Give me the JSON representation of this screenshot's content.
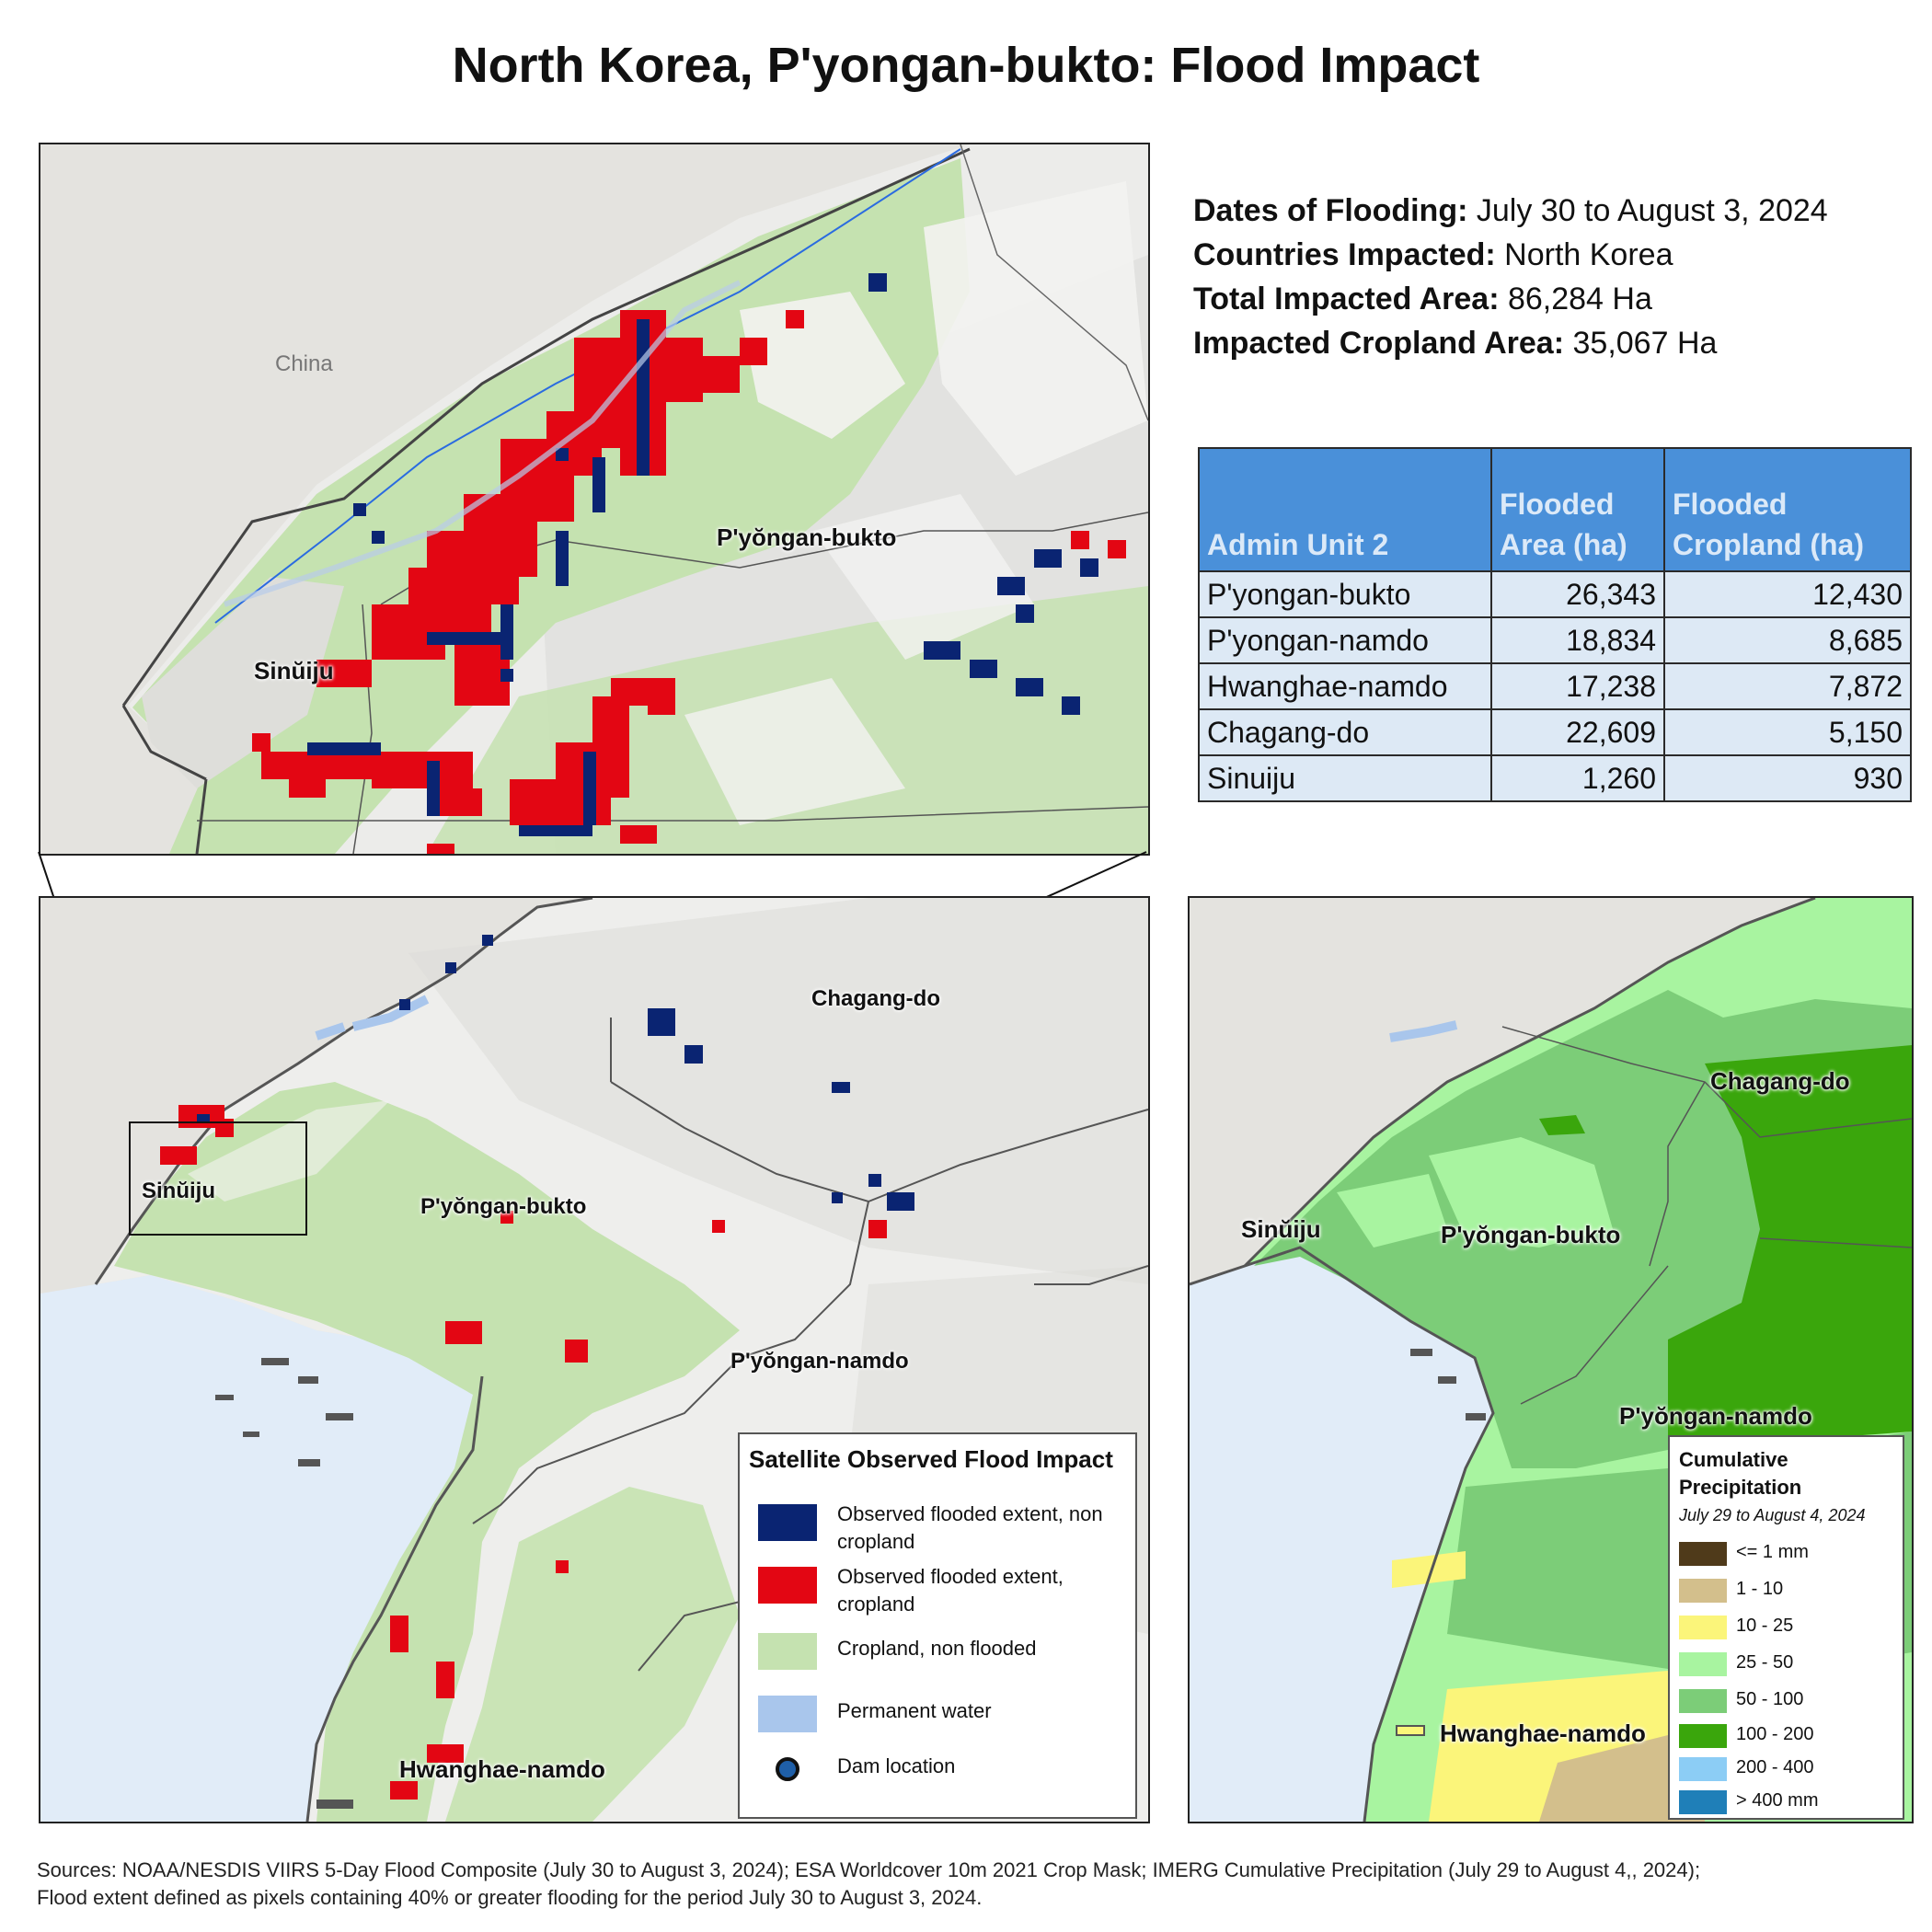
{
  "title": "North Korea, P'yongan-bukto: Flood Impact",
  "info": {
    "dates_label": "Dates of Flooding:",
    "dates_value": "July 30 to August 3, 2024",
    "countries_label": "Countries Impacted:",
    "countries_value": "North Korea",
    "total_label": "Total Impacted Area:",
    "total_value": "86,284 Ha",
    "cropland_label": "Impacted Cropland Area:",
    "cropland_value": "35,067 Ha"
  },
  "table": {
    "headers": [
      "Admin Unit 2",
      "Flooded Area (ha)",
      "Flooded Cropland (ha)"
    ],
    "rows": [
      [
        "P'yongan-bukto",
        "26,343",
        "12,430"
      ],
      [
        "P'yongan-namdo",
        "18,834",
        "8,685"
      ],
      [
        "Hwanghae-namdo",
        "17,238",
        "7,872"
      ],
      [
        "Chagang-do",
        "22,609",
        "5,150"
      ],
      [
        "Sinuiju",
        "1,260",
        "930"
      ]
    ]
  },
  "inset_labels": {
    "china": "China",
    "pyongan_bukto": "P'yŏngan-bukto",
    "sinuiju": "Sinŭiju"
  },
  "main_labels": {
    "chagang": "Chagang-do",
    "pyongan_bukto": "P'yŏngan-bukto",
    "sinuiju": "Sinŭiju",
    "pyongan_namdo": "P'yŏngan-namdo",
    "hwanghae": "Hwanghae-namdo"
  },
  "precip_labels": {
    "chagang": "Chagang-do",
    "sinuiju": "Sinŭiju",
    "pyongan_bukto": "P'yŏngan-bukto",
    "pyongan_namdo": "P'yŏngan-namdo",
    "hwanghae": "Hwanghae-namdo"
  },
  "flood_legend": {
    "title": "Satellite Observed Flood Impact",
    "items": [
      {
        "label": "Observed flooded extent, non cropland",
        "color": "#0a2472"
      },
      {
        "label": "Observed flooded extent, cropland",
        "color": "#e30613"
      },
      {
        "label": "Cropland, non flooded",
        "color": "#c5e2b0"
      },
      {
        "label": "Permanent water",
        "color": "#a9c6ec"
      },
      {
        "label": "Dam location",
        "color": "#1f5fa8"
      }
    ]
  },
  "precip_legend": {
    "title_1": "Cumulative",
    "title_2": "Precipitation",
    "subtitle": "July 29 to August 4, 2024",
    "items": [
      {
        "label": "<= 1 mm",
        "color": "#4f3a1a"
      },
      {
        "label": "1 - 10",
        "color": "#d3bf8c"
      },
      {
        "label": "10 - 25",
        "color": "#fbf57a"
      },
      {
        "label": "25 - 50",
        "color": "#a8f4a0"
      },
      {
        "label": "50 - 100",
        "color": "#7ccd78"
      },
      {
        "label": "100 - 200",
        "color": "#3aa60c"
      },
      {
        "label": "200 - 400",
        "color": "#8ccdf5"
      },
      {
        "label": "> 400 mm",
        "color": "#1f7fb8"
      }
    ]
  },
  "sources": {
    "line1": "Sources: NOAA/NESDIS VIIRS 5-Day Flood Composite (July 30 to August 3, 2024); ESA Worldcover 10m 2021 Crop Mask; IMERG Cumulative Precipitation (July 29 to August 4,, 2024);",
    "line2": "Flood extent defined as pixels containing 40% or greater flooding for the period July 30 to August 3, 2024."
  }
}
